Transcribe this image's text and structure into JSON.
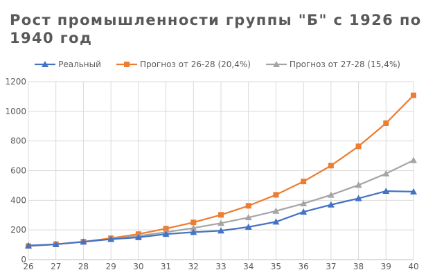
{
  "chart_data": {
    "type": "line",
    "title": "Рост промышленности группы \"Б\" с 1926 по 1940 год",
    "xlabel": "",
    "ylabel": "",
    "categories": [
      "26",
      "27",
      "28",
      "29",
      "30",
      "31",
      "32",
      "33",
      "34",
      "35",
      "36",
      "37",
      "38",
      "39",
      "40"
    ],
    "ylim": [
      0,
      1200
    ],
    "yticks": [
      0,
      200,
      400,
      600,
      800,
      1000,
      1200
    ],
    "grid": true,
    "legend_position": "top",
    "series": [
      {
        "name": "Реальный",
        "color": "#4472C4",
        "marker": "triangle",
        "values": [
          95,
          103,
          120,
          138,
          150,
          172,
          185,
          195,
          220,
          255,
          322,
          370,
          413,
          462,
          458
        ]
      },
      {
        "name": "Прогноз от 26-28 (20,4%)",
        "color": "#ED7D31",
        "marker": "square",
        "values": [
          91,
          104,
          121,
          144,
          172,
          209,
          251,
          302,
          363,
          437,
          527,
          634,
          764,
          920,
          1108
        ]
      },
      {
        "name": "Прогноз от 27-28 (15,4%)",
        "color": "#A5A5A5",
        "marker": "triangle",
        "values": [
          91,
          103,
          120,
          139,
          160,
          185,
          213,
          246,
          284,
          328,
          378,
          436,
          503,
          580,
          670
        ]
      }
    ]
  }
}
